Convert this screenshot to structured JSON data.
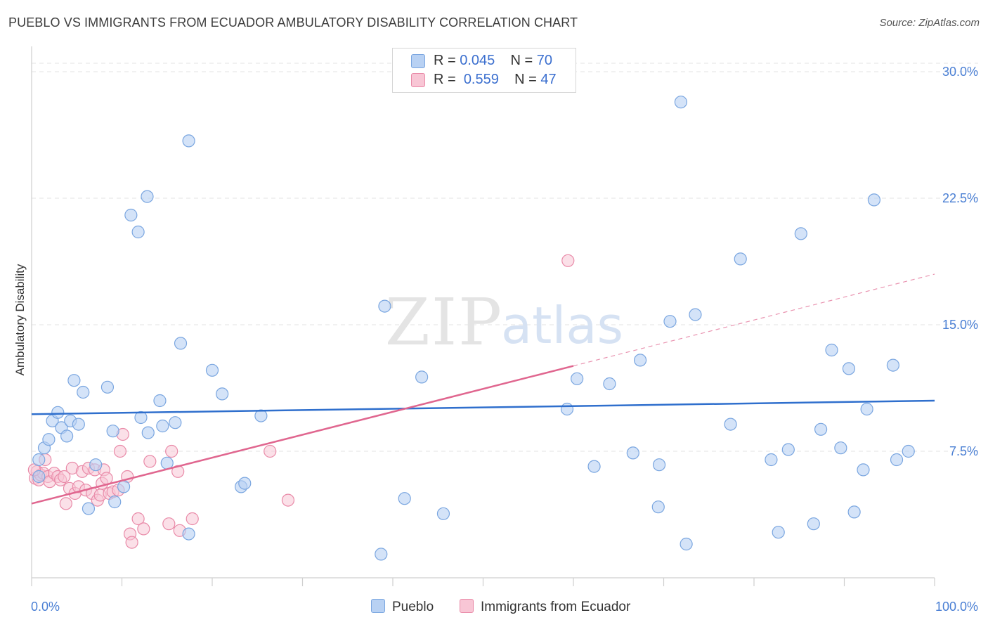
{
  "title": "PUEBLO VS IMMIGRANTS FROM ECUADOR AMBULATORY DISABILITY CORRELATION CHART",
  "source": "Source: ZipAtlas.com",
  "watermark": {
    "zip": "ZIP",
    "atlas": "atlas"
  },
  "legend": {
    "rows": [
      {
        "r_label": "R = ",
        "r_value": "0.045",
        "n_label": "N = ",
        "n_value": "70"
      },
      {
        "r_label": "R = ",
        "r_value": "0.559",
        "n_label": "N = ",
        "n_value": "47"
      }
    ]
  },
  "colors": {
    "pueblo_fill": "#b8d1f3",
    "pueblo_stroke": "#7aa6e0",
    "pueblo_line": "#2f6fcd",
    "ecuador_fill": "#f8c6d5",
    "ecuador_stroke": "#e98aa8",
    "ecuador_line": "#e0668f",
    "grid": "#e3e3e3",
    "axis_text": "#4a7fd4"
  },
  "chart_data": {
    "type": "scatter",
    "title": "PUEBLO VS IMMIGRANTS FROM ECUADOR AMBULATORY DISABILITY CORRELATION CHART",
    "xlabel": "",
    "ylabel": "Ambulatory Disability",
    "xlim": [
      0,
      100
    ],
    "ylim": [
      0,
      31.5
    ],
    "x_tick_labels": [
      "0.0%",
      "100.0%"
    ],
    "y_ticks": [
      7.5,
      15.0,
      22.5,
      30.0
    ],
    "y_tick_labels": [
      "7.5%",
      "15.0%",
      "22.5%",
      "30.0%"
    ],
    "grid": true,
    "legend_position": "top-center",
    "series": [
      {
        "name": "Pueblo",
        "r": 0.045,
        "n": 70,
        "trend": {
          "x": [
            0,
            100
          ],
          "y": [
            9.7,
            10.5
          ]
        },
        "points": [
          [
            0.8,
            6.0
          ],
          [
            0.8,
            7.0
          ],
          [
            1.4,
            7.7
          ],
          [
            1.9,
            8.2
          ],
          [
            2.3,
            9.3
          ],
          [
            2.9,
            9.8
          ],
          [
            3.3,
            8.9
          ],
          [
            3.9,
            8.4
          ],
          [
            4.3,
            9.3
          ],
          [
            4.7,
            11.7
          ],
          [
            5.2,
            9.1
          ],
          [
            5.7,
            11.0
          ],
          [
            6.3,
            4.1
          ],
          [
            7.1,
            6.7
          ],
          [
            8.4,
            11.3
          ],
          [
            9.0,
            8.7
          ],
          [
            9.2,
            4.5
          ],
          [
            10.2,
            5.4
          ],
          [
            11.0,
            21.5
          ],
          [
            11.8,
            20.5
          ],
          [
            12.1,
            9.5
          ],
          [
            12.8,
            22.6
          ],
          [
            12.9,
            8.6
          ],
          [
            14.2,
            10.5
          ],
          [
            14.5,
            9.0
          ],
          [
            15.0,
            6.8
          ],
          [
            15.9,
            9.2
          ],
          [
            16.5,
            13.9
          ],
          [
            17.4,
            25.9
          ],
          [
            17.4,
            2.6
          ],
          [
            20.0,
            12.3
          ],
          [
            21.1,
            10.9
          ],
          [
            23.2,
            5.4
          ],
          [
            23.6,
            5.6
          ],
          [
            25.4,
            9.6
          ],
          [
            38.7,
            1.4
          ],
          [
            39.1,
            16.1
          ],
          [
            41.3,
            4.7
          ],
          [
            43.2,
            11.9
          ],
          [
            45.6,
            3.8
          ],
          [
            59.3,
            10.0
          ],
          [
            60.4,
            11.8
          ],
          [
            62.3,
            6.6
          ],
          [
            64.0,
            11.5
          ],
          [
            66.6,
            7.4
          ],
          [
            67.4,
            12.9
          ],
          [
            69.4,
            4.2
          ],
          [
            69.5,
            6.7
          ],
          [
            70.7,
            15.2
          ],
          [
            71.9,
            28.2
          ],
          [
            72.5,
            2.0
          ],
          [
            73.5,
            15.6
          ],
          [
            77.4,
            9.1
          ],
          [
            78.5,
            18.9
          ],
          [
            81.9,
            7.0
          ],
          [
            82.7,
            2.7
          ],
          [
            83.8,
            7.6
          ],
          [
            85.2,
            20.4
          ],
          [
            86.6,
            3.2
          ],
          [
            87.4,
            8.8
          ],
          [
            88.6,
            13.5
          ],
          [
            89.6,
            7.7
          ],
          [
            90.5,
            12.4
          ],
          [
            91.1,
            3.9
          ],
          [
            92.1,
            6.4
          ],
          [
            92.5,
            10.0
          ],
          [
            93.3,
            22.4
          ],
          [
            95.4,
            12.6
          ],
          [
            95.8,
            7.0
          ],
          [
            97.1,
            7.5
          ]
        ]
      },
      {
        "name": "Immigrants from Ecuador",
        "r": 0.559,
        "n": 47,
        "trend": {
          "x": [
            0,
            100
          ],
          "y": [
            4.4,
            18.0
          ],
          "solid_until_x": 60
        },
        "points": [
          [
            0.4,
            5.9
          ],
          [
            0.6,
            6.3
          ],
          [
            0.8,
            5.8
          ],
          [
            1.0,
            6.1
          ],
          [
            1.3,
            6.2
          ],
          [
            1.5,
            7.0
          ],
          [
            1.8,
            6.0
          ],
          [
            2.0,
            5.7
          ],
          [
            2.5,
            6.2
          ],
          [
            2.9,
            6.0
          ],
          [
            3.2,
            5.8
          ],
          [
            3.6,
            6.0
          ],
          [
            3.8,
            4.4
          ],
          [
            4.2,
            5.3
          ],
          [
            4.5,
            6.5
          ],
          [
            4.8,
            5.0
          ],
          [
            5.2,
            5.4
          ],
          [
            5.6,
            6.3
          ],
          [
            6.0,
            5.2
          ],
          [
            6.3,
            6.5
          ],
          [
            6.7,
            5.0
          ],
          [
            7.0,
            6.4
          ],
          [
            7.3,
            4.6
          ],
          [
            7.6,
            4.9
          ],
          [
            7.8,
            5.6
          ],
          [
            8.0,
            6.4
          ],
          [
            8.3,
            5.9
          ],
          [
            8.6,
            5.0
          ],
          [
            9.0,
            5.1
          ],
          [
            9.6,
            5.2
          ],
          [
            9.8,
            7.5
          ],
          [
            10.1,
            8.5
          ],
          [
            10.6,
            6.0
          ],
          [
            10.9,
            2.6
          ],
          [
            11.1,
            2.1
          ],
          [
            11.8,
            3.5
          ],
          [
            12.4,
            2.9
          ],
          [
            13.1,
            6.9
          ],
          [
            15.2,
            3.2
          ],
          [
            15.5,
            7.5
          ],
          [
            16.2,
            6.3
          ],
          [
            16.4,
            2.8
          ],
          [
            17.8,
            3.5
          ],
          [
            26.4,
            7.5
          ],
          [
            28.4,
            4.6
          ],
          [
            59.4,
            18.8
          ],
          [
            0.3,
            6.4
          ]
        ]
      }
    ]
  }
}
